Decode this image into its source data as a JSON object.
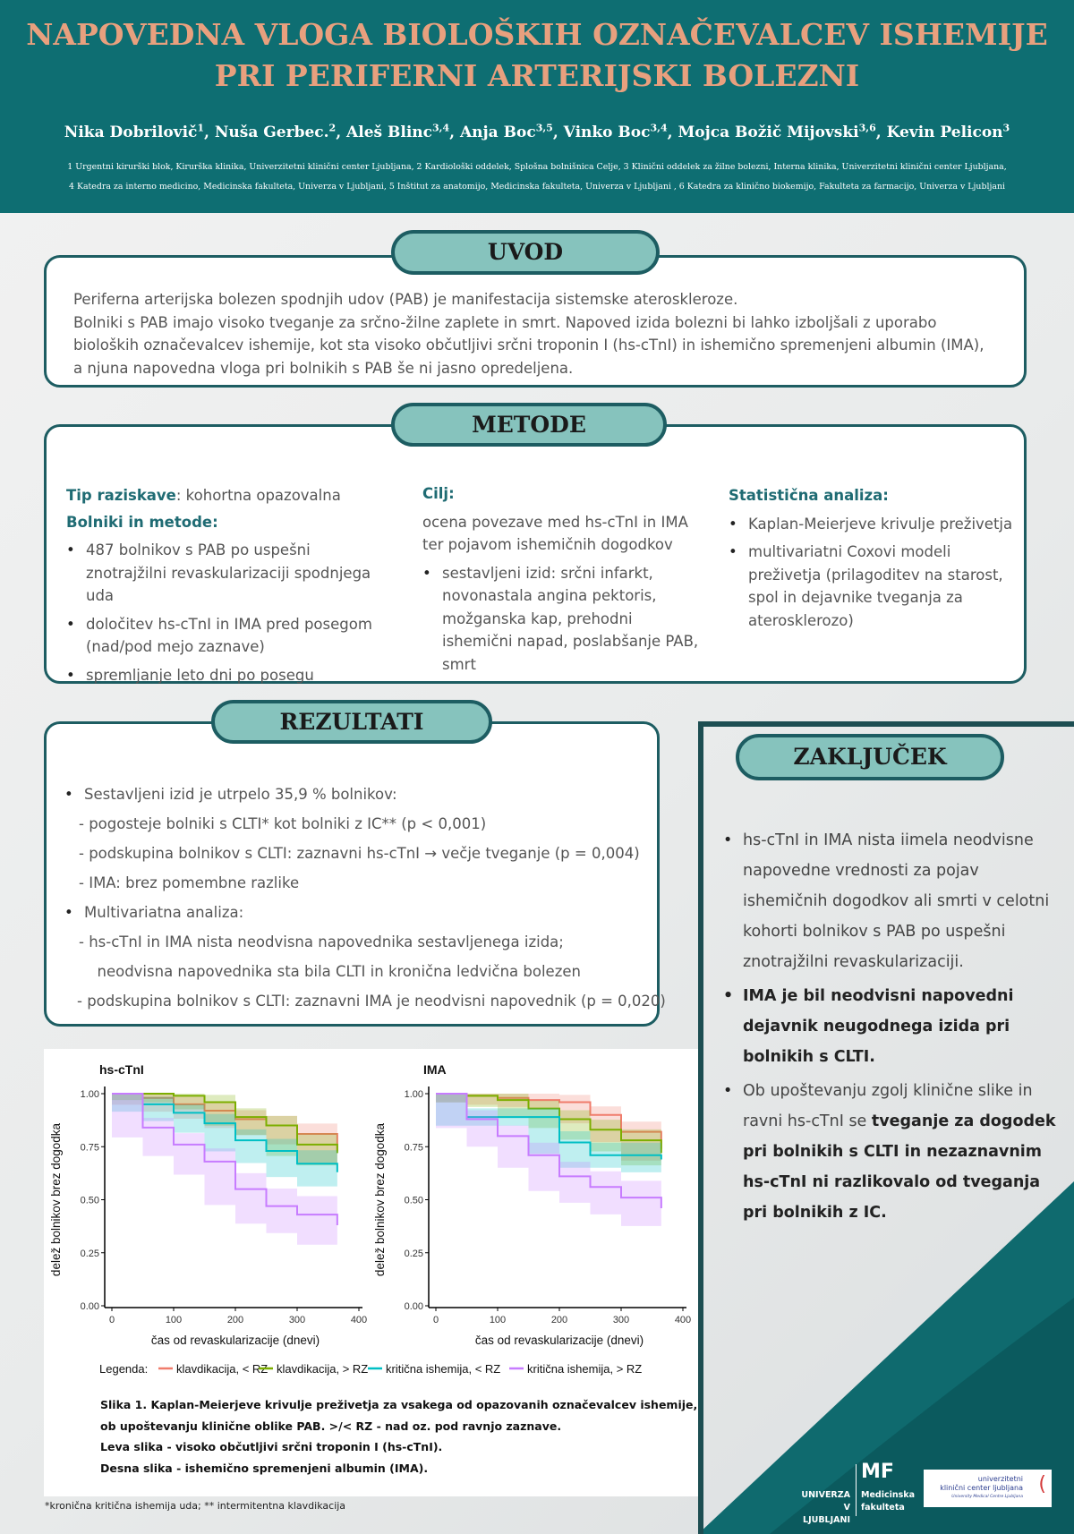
{
  "header": {
    "title_line1": "NAPOVEDNA VLOGA BIOLOŠKIH OZNAČEVALCEV ISHEMIJE",
    "title_line2": "PRI PERIFERNI ARTERIJSKI BOLEZNI",
    "authors": [
      {
        "name": "Nika Dobrilovič",
        "sup": "1"
      },
      {
        "name": "Nuša Gerbec.",
        "sup": "2"
      },
      {
        "name": "Aleš Blinc",
        "sup": "3,4"
      },
      {
        "name": "Anja Boc",
        "sup": "3,5"
      },
      {
        "name": "Vinko Boc",
        "sup": "3,4"
      },
      {
        "name": "Mojca Božič Mijovski",
        "sup": "3,6"
      },
      {
        "name": "Kevin Pelicon",
        "sup": "3"
      }
    ],
    "affil_line1": "1 Urgentni kirurški blok, Kirurška klinika, Univerzitetni klinični center Ljubljana, 2 Kardiološki oddelek, Splošna bolnišnica Celje, 3 Klinični oddelek za žilne bolezni, Interna klinika, Univerzitetni klinični center Ljubljana,",
    "affil_line2": "4 Katedra za interno medicino, Medicinska fakulteta, Univerza v Ljubljani, 5 Inštitut za anatomijo, Medicinska fakulteta, Univerza v Ljubljani , 6 Katedra za klinično biokemijo, Fakulteta za farmacijo, Univerza v Ljubljani"
  },
  "uvod": {
    "heading": "UVOD",
    "p1": "Periferna arterijska bolezen spodnjih udov (PAB) je manifestacija sistemske ateroskleroze.",
    "p2": "Bolniki s PAB imajo visoko tveganje za srčno-žilne zaplete in smrt. Napoved izida bolezni bi lahko izboljšali z uporabo bioloških označevalcev ishemije, kot sta visoko občutljivi srčni troponin I (hs-cTnI) in ishemično spremenjeni albumin (IMA), a njuna napovedna vloga pri bolnikih s PAB še ni jasno opredeljena."
  },
  "metode": {
    "heading": "METODE",
    "tip_label": "Tip raziskave",
    "tip_value": ": kohortna opazovalna",
    "bolniki_label": "Bolniki in metode:",
    "bolniki_items": [
      "487 bolnikov s PAB po uspešni znotrajžilni revaskularizaciji spodnjega uda",
      "določitev hs-cTnI in IMA pred posegom (nad/pod mejo zaznave)",
      "spremljanje leto dni po posegu"
    ],
    "cilj_label": "Cilj:",
    "cilj_text": "ocena povezave med hs-cTnI in IMA ter pojavom ishemičnih dogodkov",
    "cilj_items": [
      "sestavljeni izid: srčni infarkt, novonastala angina pektoris, možganska kap, prehodni ishemični napad, poslabšanje PAB, smrt"
    ],
    "stat_label": "Statistična analiza:",
    "stat_items": [
      "Kaplan-Meierjeve krivulje preživetja",
      "multivariatni Coxovi modeli preživetja (prilagoditev na starost, spol in dejavnike tveganja za aterosklerozo)"
    ]
  },
  "rezultati": {
    "heading": "REZULTATI",
    "b1": "Sestavljeni izid je utrpelo 35,9 % bolnikov:",
    "b1_sub": [
      "- pogosteje bolniki s CLTI* kot bolniki z IC** (p < 0,001)",
      "- podskupina bolnikov s CLTI: zaznavni hs-cTnI → večje tveganje (p = 0,004)",
      "- IMA: brez pomembne razlike"
    ],
    "b2": "Multivariatna analiza:",
    "b2_sub": [
      "- hs-cTnI in IMA nista neodvisna napovednika sestavljenega izida;",
      "  neodvisna napovednika sta bila CLTI in kronična ledvična bolezen",
      "- podskupina bolnikov s CLTI: zaznavni IMA je neodvisni napovednik (p = 0,020)"
    ]
  },
  "zakljucek": {
    "heading": "ZAKLJUČEK",
    "i1": "hs-cTnI in IMA nista iimela neodvisne napovedne vrednosti za pojav ishemičnih dogodkov ali smrti v celotni kohorti bolnikov s PAB po uspešni znotrajžilni revaskularizaciji.",
    "i2": "IMA je bil neodvisni napovedni dejavnik neugodnega izida pri bolnikih s CLTI.",
    "i3_pre": "Ob upoštevanju zgolj klinične slike in ravni hs-cTnI se ",
    "i3_bold": "tveganje za dogodek pri bolnikih s CLTI in nezaznavnim hs-cTnI ni razlikovalo od tveganja pri bolnikih z IC."
  },
  "caption": {
    "l1": "Slika 1. Kaplan-Meierjeve krivulje preživetja za vsakega od opazovanih označevalcev ishemije,",
    "l2": "ob upoštevanju klinične oblike PAB.  >/< RZ - nad oz. pod ravnjo zaznave.",
    "l3": "Leva slika - visoko občutljivi srčni troponin I (hs-cTnI).",
    "l4": "Desna slika - ishemično spremenjeni albumin (IMA)."
  },
  "footnote": "*kronična kritična ishemija uda; ** intermitentna klavdikacija",
  "logos": {
    "uni1": "UNIVERZA",
    "uni2": "V LJUBLJANI",
    "mf": "MF",
    "mf1": "Medicinska",
    "mf2": "fakulteta",
    "ukc1": "univerzitetni",
    "ukc2": "klinični center ljubljana",
    "ukc3": "University Medical Centre Ljubljana"
  },
  "chart_data": [
    {
      "type": "line",
      "title": "hs-cTnI",
      "xlabel": "čas od revaskularizacije (dnevi)",
      "ylabel": "delež bolnikov brez dogodka",
      "xlim": [
        0,
        400
      ],
      "ylim": [
        0,
        1
      ],
      "xticks": [
        "0",
        "100",
        "200",
        "300",
        "400"
      ],
      "yticks": [
        "0.00",
        "0.25",
        "0.50",
        "0.75",
        "1.00"
      ],
      "x": [
        0,
        50,
        100,
        150,
        200,
        250,
        300,
        365
      ],
      "series": [
        {
          "name": "klavdikacija, < RZ",
          "color": "#f07c6c",
          "values": [
            1,
            0.98,
            0.95,
            0.92,
            0.88,
            0.85,
            0.81,
            0.73
          ]
        },
        {
          "name": "klavdikacija, > RZ",
          "color": "#7cae00",
          "values": [
            1,
            1,
            0.99,
            0.96,
            0.89,
            0.85,
            0.76,
            0.72
          ]
        },
        {
          "name": "kritična ishemija, < RZ",
          "color": "#00bfc4",
          "values": [
            1,
            0.95,
            0.91,
            0.86,
            0.78,
            0.73,
            0.67,
            0.63
          ]
        },
        {
          "name": "kritična ishemija, > RZ",
          "color": "#c77cff",
          "values": [
            1,
            0.84,
            0.76,
            0.68,
            0.55,
            0.47,
            0.43,
            0.38
          ]
        }
      ]
    },
    {
      "type": "line",
      "title": "IMA",
      "xlabel": "čas od revaskularizacije (dnevi)",
      "ylabel": "delež bolnikov brez dogodka",
      "xlim": [
        0,
        400
      ],
      "ylim": [
        0,
        1
      ],
      "xticks": [
        "0",
        "100",
        "200",
        "300",
        "400"
      ],
      "yticks": [
        "0.00",
        "0.25",
        "0.50",
        "0.75",
        "1.00"
      ],
      "x": [
        0,
        50,
        100,
        150,
        200,
        250,
        300,
        365
      ],
      "series": [
        {
          "name": "klavdikacija, < RZ",
          "color": "#f07c6c",
          "values": [
            1,
            0.99,
            0.98,
            0.97,
            0.96,
            0.9,
            0.82,
            0.74
          ]
        },
        {
          "name": "klavdikacija, > RZ",
          "color": "#7cae00",
          "values": [
            1,
            0.99,
            0.97,
            0.93,
            0.88,
            0.83,
            0.78,
            0.72
          ]
        },
        {
          "name": "kritična ishemija, < RZ",
          "color": "#00bfc4",
          "values": [
            1,
            0.89,
            0.89,
            0.89,
            0.77,
            0.71,
            0.71,
            0.69
          ]
        },
        {
          "name": "kritična ishemija, > RZ",
          "color": "#c77cff",
          "values": [
            1,
            0.88,
            0.8,
            0.71,
            0.61,
            0.56,
            0.51,
            0.46
          ]
        }
      ]
    }
  ],
  "legend": {
    "label": "Legenda:"
  }
}
